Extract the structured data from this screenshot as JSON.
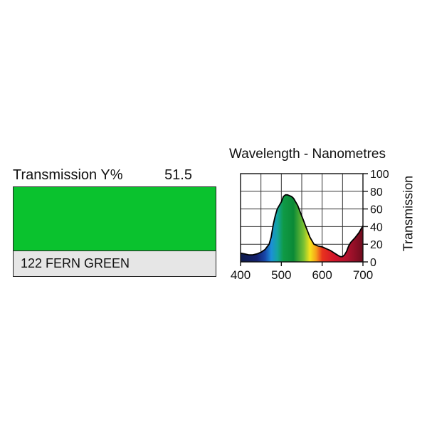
{
  "swatch": {
    "transmission_label": "Transmission Y%",
    "transmission_value": "51.5",
    "color": "#0ac22e",
    "name": "122 FERN GREEN",
    "name_bg": "#e6e6e6"
  },
  "chart_data": {
    "type": "area",
    "title": "Wavelength - Nanometres",
    "xlabel": "",
    "ylabel": "Transmission",
    "xlim": [
      400,
      700
    ],
    "ylim": [
      0,
      100
    ],
    "xticks": [
      400,
      500,
      600,
      700
    ],
    "yticks": [
      0,
      20,
      40,
      60,
      80,
      100
    ],
    "grid": true,
    "series": [
      {
        "x": [
          400,
          410,
          420,
          430,
          440,
          450,
          460,
          470,
          475,
          480,
          485,
          490,
          495,
          500,
          505,
          510,
          515,
          520,
          525,
          530,
          535,
          540,
          545,
          550,
          555,
          560,
          565,
          570,
          575,
          580,
          590,
          600,
          610,
          620,
          630,
          640,
          645,
          650,
          655,
          660,
          665,
          670,
          680,
          690,
          700
        ],
        "y": [
          10,
          9,
          8,
          8,
          9,
          11,
          14,
          20,
          28,
          42,
          52,
          60,
          64,
          68,
          74,
          76,
          76,
          75,
          74,
          72,
          68,
          64,
          58,
          52,
          46,
          40,
          34,
          28,
          24,
          20,
          18,
          17,
          15,
          13,
          10,
          7,
          6,
          6,
          8,
          12,
          18,
          22,
          27,
          33,
          41
        ]
      }
    ]
  }
}
